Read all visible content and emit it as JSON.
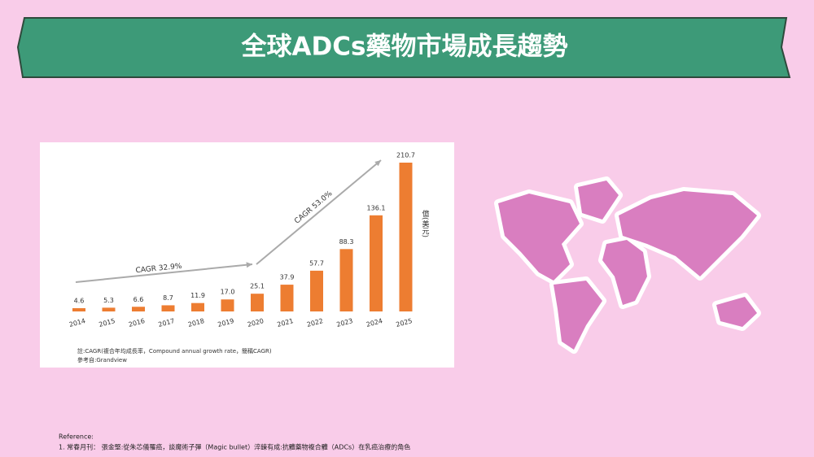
{
  "slide": {
    "title": "全球ADCs藥物市場成長趨勢",
    "reference_heading": "Reference:",
    "reference": "1. 常春月刊： 張金堅:從朱芯儀罹癌，談魔術子彈（Magic bullet）淬鍊有成:抗體藥物複合體（ADCs）在乳癌治療的角色"
  },
  "chart_data": {
    "type": "bar",
    "categories": [
      "2014",
      "2015",
      "2016",
      "2017",
      "2018",
      "2019",
      "2020",
      "2021",
      "2022",
      "2023",
      "2024",
      "2025"
    ],
    "values": [
      4.6,
      5.3,
      6.6,
      8.7,
      11.9,
      17.0,
      25.1,
      37.9,
      57.7,
      88.3,
      136.1,
      210.7
    ],
    "value_labels": [
      "4.6",
      "5.3",
      "6.6",
      "8.7",
      "11.9",
      "17.0",
      "25.1",
      "37.9",
      "57.7",
      "88.3",
      "136.1",
      "210.7"
    ],
    "color": "#ed7d31",
    "unit_label": "億(美元)",
    "annotations": [
      "CAGR 32.9%",
      "CAGR 53.0%"
    ],
    "notes": [
      "註:CAGR(複合年均成長率，Compound annual growth rate，簡稱CAGR)",
      "參考自:Grandview"
    ]
  }
}
